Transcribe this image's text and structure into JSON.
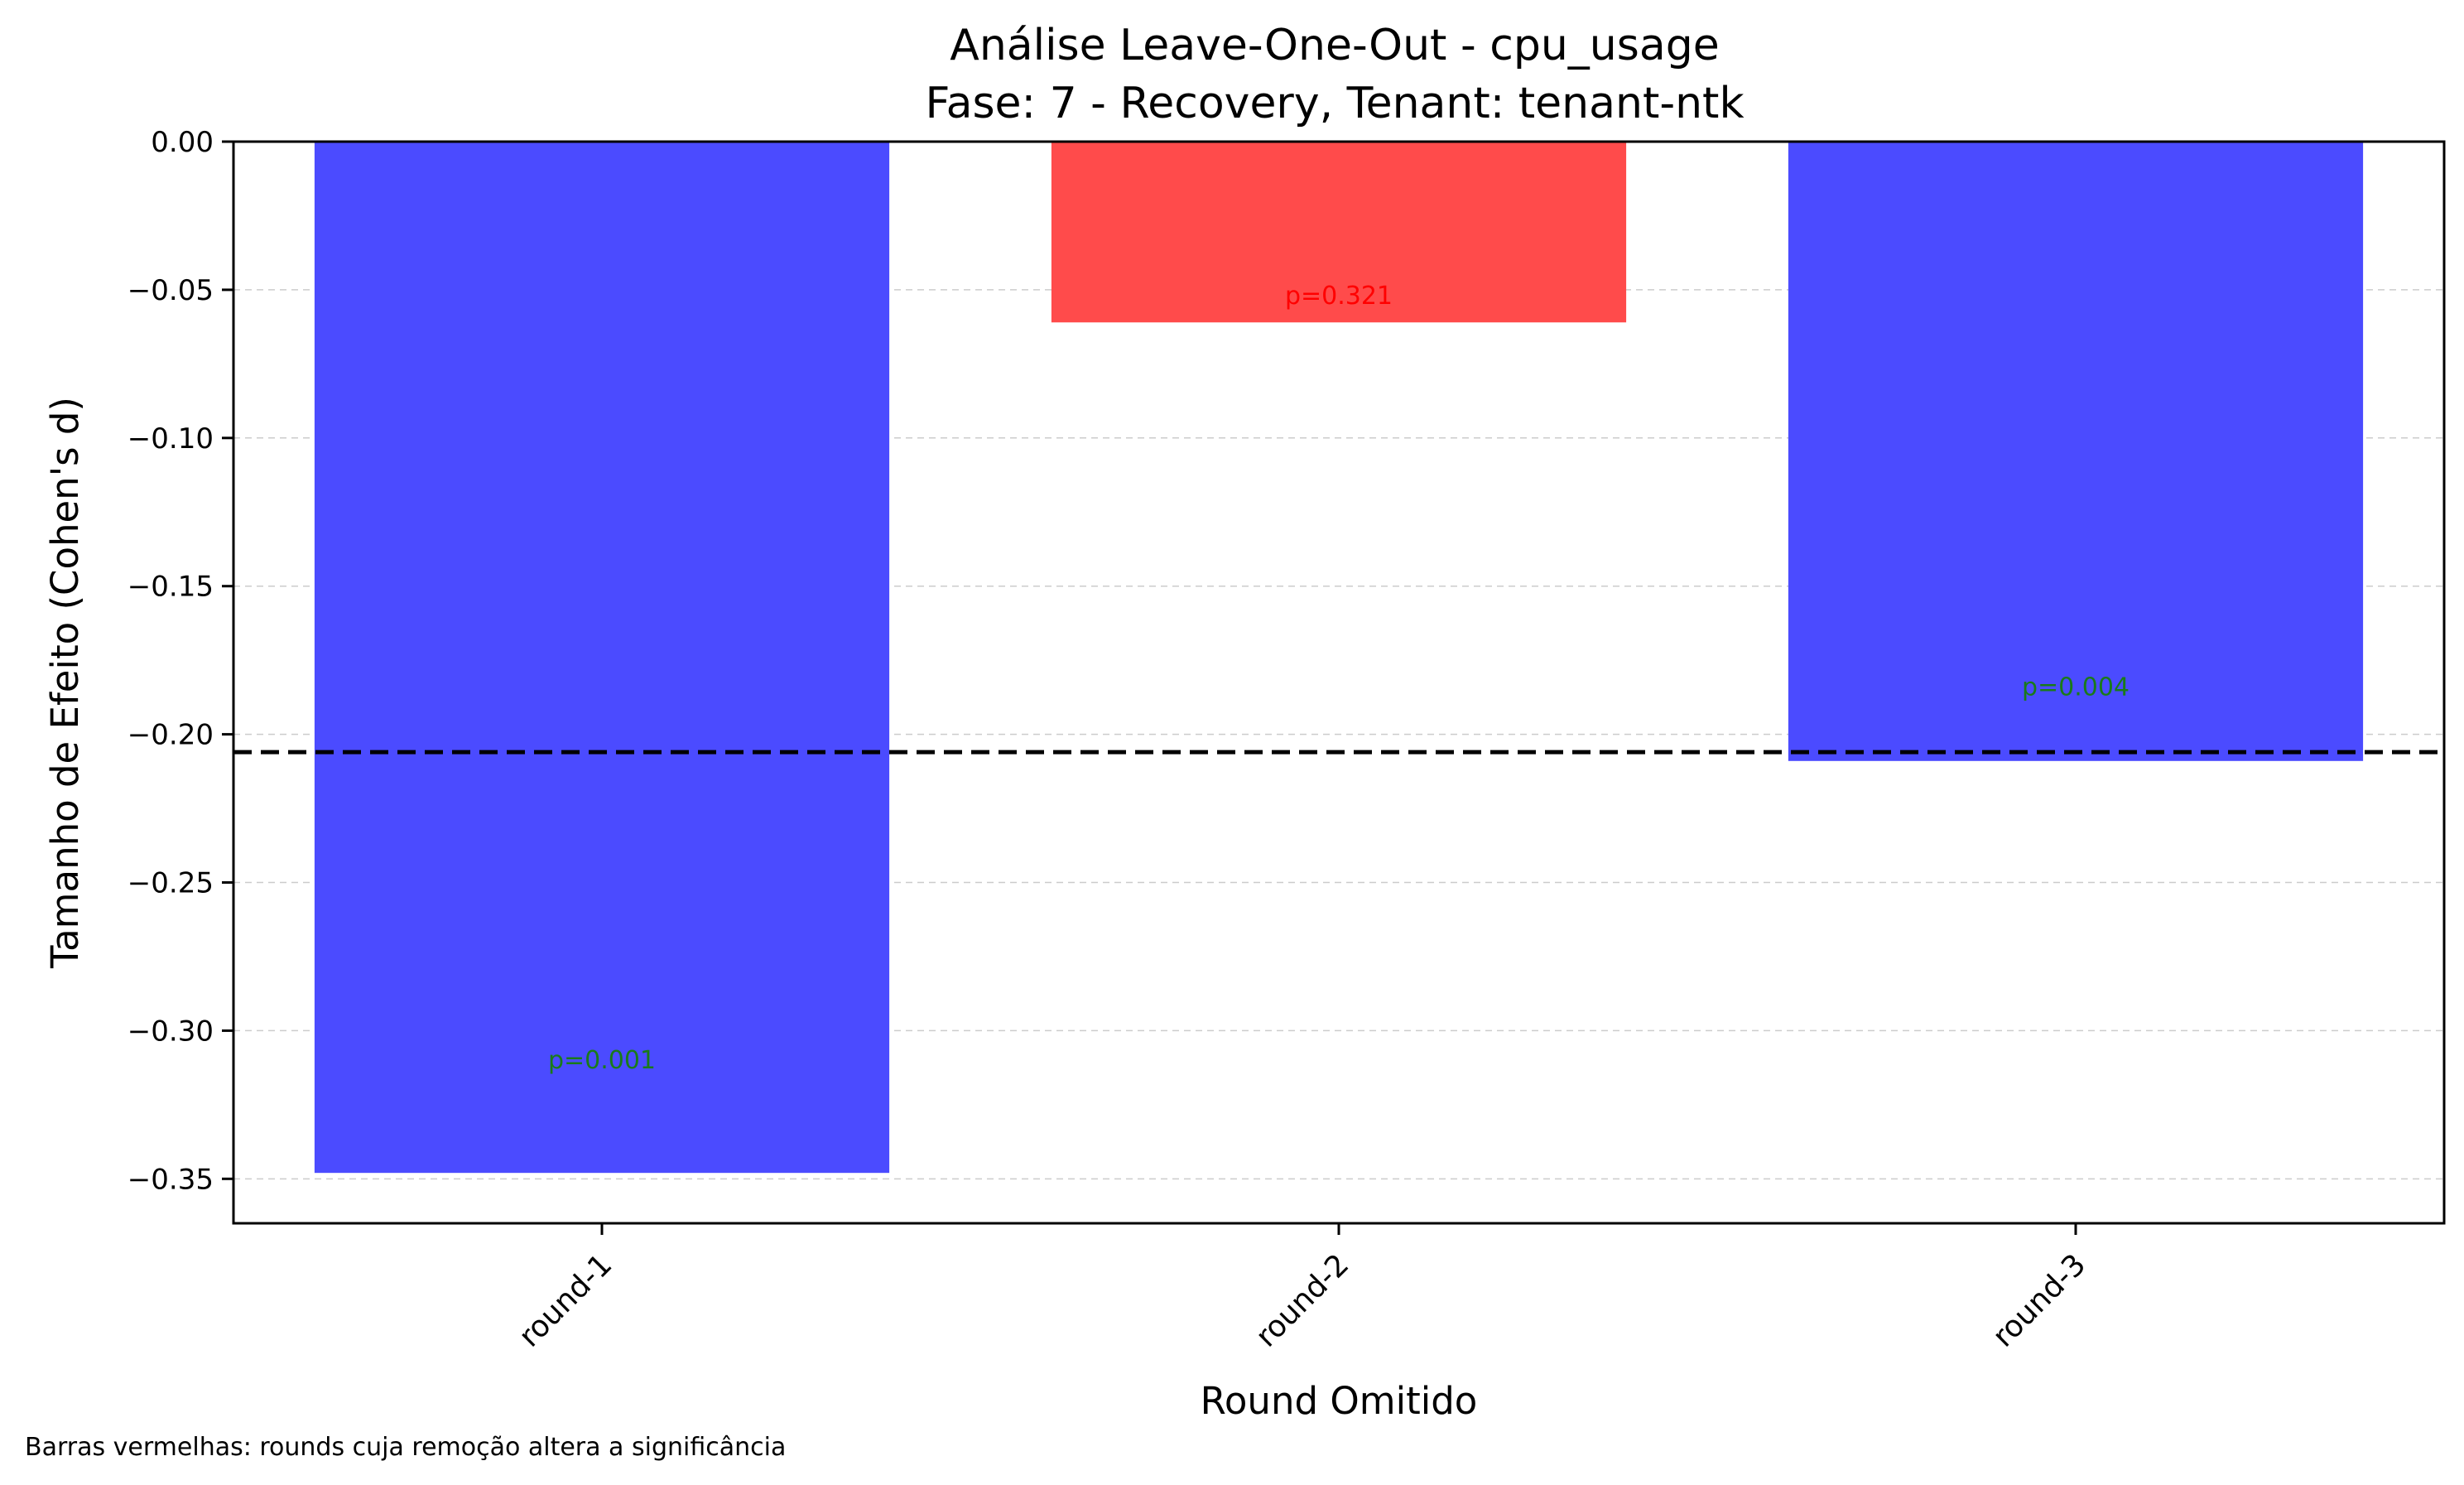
{
  "chart_data": {
    "type": "bar",
    "title": "Análise Leave-One-Out - cpu_usage",
    "subtitle": "Fase: 7 - Recovery, Tenant: tenant-ntk",
    "xlabel": "Round Omitido",
    "ylabel": "Tamanho de Efeito (Cohen's d)",
    "categories": [
      "round-1",
      "round-2",
      "round-3"
    ],
    "values": [
      -0.348,
      -0.061,
      -0.209
    ],
    "bar_colors": [
      "#4b4bff",
      "#ff4b4b",
      "#4b4bff"
    ],
    "labels": [
      "p=0.001",
      "p=0.321",
      "p=0.004"
    ],
    "label_values": [
      -0.31,
      -0.052,
      -0.184
    ],
    "label_colors": [
      "#1a7a1a",
      "#ff0000",
      "#1a7a1a"
    ],
    "reference_line": -0.206,
    "reference_line_style": "dashed black",
    "ylim": [
      -0.365,
      0.0
    ],
    "yticks": [
      0.0,
      -0.05,
      -0.1,
      -0.15,
      -0.2,
      -0.25,
      -0.3,
      -0.35
    ],
    "ytick_labels": [
      "0.00",
      "−0.05",
      "−0.10",
      "−0.15",
      "−0.20",
      "−0.25",
      "−0.30",
      "−0.35"
    ],
    "grid": "horizontal dashed",
    "footnote": "Barras vermelhas: rounds cuja remoção altera a significância"
  }
}
